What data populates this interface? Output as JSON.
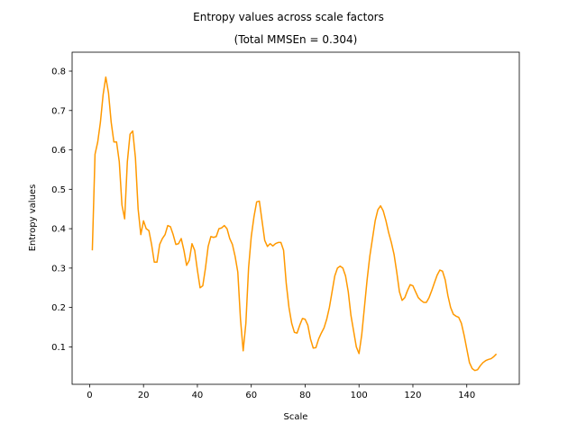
{
  "chart_data": {
    "type": "line",
    "title": "Entropy values across scale factors",
    "subtitle": "(Total MMSEn = 0.304)",
    "x_label": "Scale",
    "y_label": "Entropy values",
    "x": [
      1,
      2,
      3,
      4,
      5,
      6,
      7,
      8,
      9,
      10,
      11,
      12,
      13,
      14,
      15,
      16,
      17,
      18,
      19,
      20,
      21,
      22,
      23,
      24,
      25,
      26,
      27,
      28,
      29,
      30,
      31,
      32,
      33,
      34,
      35,
      36,
      37,
      38,
      39,
      40,
      41,
      42,
      43,
      44,
      45,
      46,
      47,
      48,
      49,
      50,
      51,
      52,
      53,
      54,
      55,
      56,
      57,
      58,
      59,
      60,
      61,
      62,
      63,
      64,
      65,
      66,
      67,
      68,
      69,
      70,
      71,
      72,
      73,
      74,
      75,
      76,
      77,
      78,
      79,
      80,
      81,
      82,
      83,
      84,
      85,
      86,
      87,
      88,
      89,
      90,
      91,
      92,
      93,
      94,
      95,
      96,
      97,
      98,
      99,
      100,
      101,
      102,
      103,
      104,
      105,
      106,
      107,
      108,
      109,
      110,
      111,
      112,
      113,
      114,
      115,
      116,
      117,
      118,
      119,
      120,
      121,
      122,
      123,
      124,
      125,
      126,
      127,
      128,
      129,
      130,
      131,
      132,
      133,
      134,
      135,
      136,
      137,
      138,
      139,
      140,
      141,
      142,
      143,
      144,
      145,
      146,
      147,
      148,
      149,
      150,
      151
    ],
    "series": [
      {
        "name": "Entropy values",
        "color": "#ff9900",
        "values": [
          0.345,
          0.589,
          0.62,
          0.67,
          0.74,
          0.785,
          0.745,
          0.67,
          0.62,
          0.62,
          0.57,
          0.46,
          0.425,
          0.57,
          0.64,
          0.648,
          0.58,
          0.45,
          0.385,
          0.42,
          0.4,
          0.395,
          0.36,
          0.315,
          0.315,
          0.36,
          0.375,
          0.385,
          0.408,
          0.405,
          0.385,
          0.36,
          0.362,
          0.375,
          0.345,
          0.307,
          0.32,
          0.362,
          0.345,
          0.295,
          0.25,
          0.255,
          0.3,
          0.355,
          0.38,
          0.378,
          0.38,
          0.4,
          0.402,
          0.408,
          0.4,
          0.375,
          0.36,
          0.33,
          0.29,
          0.17,
          0.09,
          0.16,
          0.3,
          0.38,
          0.43,
          0.468,
          0.47,
          0.42,
          0.37,
          0.355,
          0.362,
          0.356,
          0.362,
          0.365,
          0.365,
          0.345,
          0.26,
          0.2,
          0.16,
          0.137,
          0.135,
          0.155,
          0.172,
          0.17,
          0.155,
          0.12,
          0.097,
          0.098,
          0.12,
          0.135,
          0.148,
          0.17,
          0.2,
          0.24,
          0.28,
          0.3,
          0.305,
          0.3,
          0.28,
          0.24,
          0.18,
          0.14,
          0.1,
          0.083,
          0.13,
          0.2,
          0.27,
          0.33,
          0.375,
          0.42,
          0.448,
          0.458,
          0.445,
          0.42,
          0.39,
          0.365,
          0.335,
          0.29,
          0.24,
          0.218,
          0.225,
          0.243,
          0.258,
          0.255,
          0.24,
          0.225,
          0.218,
          0.213,
          0.213,
          0.225,
          0.243,
          0.263,
          0.282,
          0.295,
          0.292,
          0.27,
          0.23,
          0.2,
          0.183,
          0.178,
          0.175,
          0.16,
          0.13,
          0.095,
          0.06,
          0.045,
          0.04,
          0.042,
          0.052,
          0.06,
          0.065,
          0.068,
          0.07,
          0.075,
          0.082
        ]
      }
    ],
    "xlim": [
      -6.5,
      159.5
    ],
    "ylim": [
      0.005,
      0.848
    ],
    "xticks": [
      0,
      20,
      40,
      60,
      80,
      100,
      120,
      140
    ],
    "yticks": [
      0.1,
      0.2,
      0.3,
      0.4,
      0.5,
      0.6,
      0.7,
      0.8
    ],
    "grid": false
  }
}
